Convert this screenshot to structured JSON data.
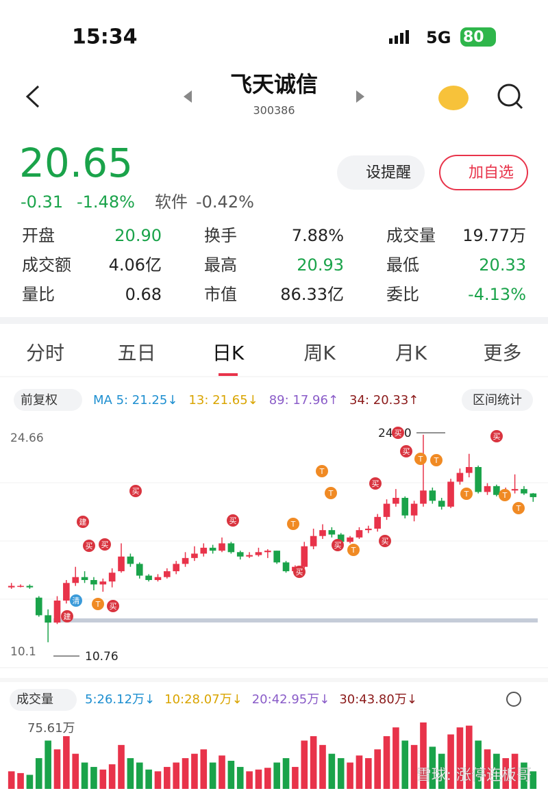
{
  "status": {
    "time": "15:34",
    "network": "5G",
    "battery": "80"
  },
  "header": {
    "title": "飞天诚信",
    "code": "300386"
  },
  "quote": {
    "price": "20.65",
    "change": "-0.31",
    "change_pct": "-1.48%",
    "sector": "软件",
    "sector_pct": "-0.42%"
  },
  "buttons": [
    "设提醒",
    "加自选"
  ],
  "stats": [
    [
      {
        "label": "开盘",
        "value": "20.90",
        "color": "#1aa34a"
      },
      {
        "label": "换手",
        "value": "7.88%",
        "color": "#222"
      },
      {
        "label": "成交量",
        "value": "19.77万",
        "color": "#222"
      }
    ],
    [
      {
        "label": "成交额",
        "value": "4.06亿",
        "color": "#222"
      },
      {
        "label": "最高",
        "value": "20.93",
        "color": "#1aa34a"
      },
      {
        "label": "最低",
        "value": "20.33",
        "color": "#1aa34a"
      }
    ],
    [
      {
        "label": "量比",
        "value": "0.68",
        "color": "#222"
      },
      {
        "label": "市值",
        "value": "86.33亿",
        "color": "#222"
      },
      {
        "label": "委比",
        "value": "-4.13%",
        "color": "#1aa34a"
      }
    ]
  ],
  "tabs": [
    "分时",
    "五日",
    "日K",
    "周K",
    "月K",
    "更多"
  ],
  "indicators": {
    "adjust": "前复权",
    "ma": [
      {
        "text": "MA 5: 21.25↓",
        "color": "#1e8fd0"
      },
      {
        "text": "13: 21.65↓",
        "color": "#d9a400"
      },
      {
        "text": "89: 17.96↑",
        "color": "#8a5cc8"
      },
      {
        "text": "34: 20.33↑",
        "color": "#8b1a1a"
      }
    ],
    "range_stats": "区间统计"
  },
  "chart_data": {
    "type": "candlestick",
    "up_color": "#e8334a",
    "down_color": "#1aa34a",
    "ylim": [
      10.1,
      24.66
    ],
    "yticks": [
      24.66,
      10.1
    ],
    "high_label": "24.90",
    "low_label": "10.76",
    "candles": [
      [
        14.5,
        14.8,
        14.4,
        14.6
      ],
      [
        14.6,
        14.7,
        14.5,
        14.6
      ],
      [
        14.6,
        14.7,
        14.4,
        14.5
      ],
      [
        13.8,
        13.9,
        12.5,
        12.6
      ],
      [
        12.6,
        13.0,
        10.76,
        12.1
      ],
      [
        12.1,
        13.9,
        12.0,
        13.6
      ],
      [
        13.6,
        15.0,
        13.4,
        14.8
      ],
      [
        14.8,
        15.9,
        14.6,
        15.2
      ],
      [
        15.2,
        15.6,
        14.8,
        15.0
      ],
      [
        15.0,
        15.2,
        14.3,
        14.7
      ],
      [
        14.7,
        15.1,
        14.2,
        14.9
      ],
      [
        14.9,
        15.8,
        14.5,
        15.5
      ],
      [
        15.6,
        17.5,
        15.5,
        16.6
      ],
      [
        16.6,
        16.8,
        15.9,
        16.1
      ],
      [
        16.1,
        16.2,
        15.1,
        15.3
      ],
      [
        15.3,
        15.4,
        14.9,
        15.0
      ],
      [
        15.0,
        15.4,
        14.9,
        15.2
      ],
      [
        15.2,
        15.8,
        15.1,
        15.6
      ],
      [
        15.6,
        16.3,
        15.4,
        16.1
      ],
      [
        16.1,
        16.9,
        15.9,
        16.5
      ],
      [
        16.5,
        17.3,
        16.3,
        16.8
      ],
      [
        16.8,
        17.5,
        16.6,
        17.2
      ],
      [
        17.2,
        17.4,
        16.8,
        17.0
      ],
      [
        17.0,
        17.9,
        16.9,
        17.5
      ],
      [
        17.5,
        17.6,
        16.8,
        16.9
      ],
      [
        16.9,
        17.0,
        16.4,
        16.6
      ],
      [
        16.6,
        16.9,
        16.5,
        16.7
      ],
      [
        16.7,
        17.2,
        16.6,
        16.9
      ],
      [
        16.9,
        17.1,
        16.5,
        17.0
      ],
      [
        17.0,
        17.0,
        16.1,
        16.2
      ],
      [
        16.2,
        16.3,
        15.5,
        15.6
      ],
      [
        15.6,
        16.0,
        15.4,
        15.9
      ],
      [
        15.9,
        17.6,
        15.8,
        17.3
      ],
      [
        17.3,
        18.5,
        17.1,
        18.0
      ],
      [
        18.0,
        18.8,
        17.8,
        18.4
      ],
      [
        18.4,
        18.6,
        17.9,
        18.1
      ],
      [
        18.1,
        18.2,
        17.4,
        17.6
      ],
      [
        17.6,
        18.0,
        17.5,
        17.9
      ],
      [
        17.9,
        18.6,
        17.8,
        18.4
      ],
      [
        18.4,
        18.7,
        18.2,
        18.5
      ],
      [
        18.5,
        19.5,
        18.3,
        19.3
      ],
      [
        19.3,
        20.5,
        19.1,
        20.2
      ],
      [
        20.2,
        21.2,
        20.0,
        20.6
      ],
      [
        20.6,
        20.7,
        19.2,
        19.4
      ],
      [
        19.4,
        20.4,
        19.0,
        20.2
      ],
      [
        20.2,
        24.9,
        20.0,
        21.1
      ],
      [
        21.1,
        21.3,
        20.2,
        20.4
      ],
      [
        20.4,
        20.6,
        19.8,
        20.0
      ],
      [
        20.0,
        21.9,
        19.9,
        21.7
      ],
      [
        21.7,
        22.6,
        21.5,
        22.3
      ],
      [
        22.3,
        23.6,
        22.0,
        22.7
      ],
      [
        22.7,
        22.8,
        20.9,
        21.0
      ],
      [
        21.0,
        21.6,
        20.8,
        21.4
      ],
      [
        21.4,
        21.5,
        20.7,
        20.8
      ],
      [
        20.8,
        21.3,
        20.6,
        21.1
      ],
      [
        21.1,
        22.2,
        20.9,
        21.2
      ],
      [
        21.2,
        21.4,
        20.8,
        20.9
      ],
      [
        20.9,
        20.93,
        20.33,
        20.65
      ]
    ],
    "markers": [
      "建",
      "买",
      "买",
      "清",
      "T",
      "买",
      "买",
      "买",
      "T",
      "T",
      "T",
      "买",
      "买",
      "T",
      "买",
      "买",
      "买",
      "买",
      "T",
      "T",
      "T",
      "T",
      "T",
      "买",
      "建"
    ],
    "volume": {
      "title": "成交量",
      "ma": [
        {
          "text": "5:26.12万↓",
          "color": "#1e8fd0"
        },
        {
          "text": "10:28.07万↓",
          "color": "#d9a400"
        },
        {
          "text": "20:42.95万↓",
          "color": "#8a5cc8"
        },
        {
          "text": "30:43.80万↓",
          "color": "#8b1a1a"
        }
      ],
      "vmax": {
        "value": 75.61,
        "label": "75.61万"
      },
      "values": [
        20,
        18,
        16,
        35,
        55,
        45,
        60,
        40,
        30,
        25,
        22,
        28,
        50,
        35,
        30,
        22,
        20,
        25,
        30,
        35,
        40,
        45,
        30,
        38,
        32,
        25,
        20,
        22,
        24,
        30,
        35,
        25,
        55,
        60,
        50,
        40,
        35,
        30,
        38,
        35,
        45,
        60,
        70,
        55,
        50,
        75.61,
        48,
        40,
        62,
        70,
        72,
        55,
        45,
        40,
        35,
        40,
        30,
        20
      ]
    }
  },
  "watermark": "雪球: 涨停连板哥"
}
